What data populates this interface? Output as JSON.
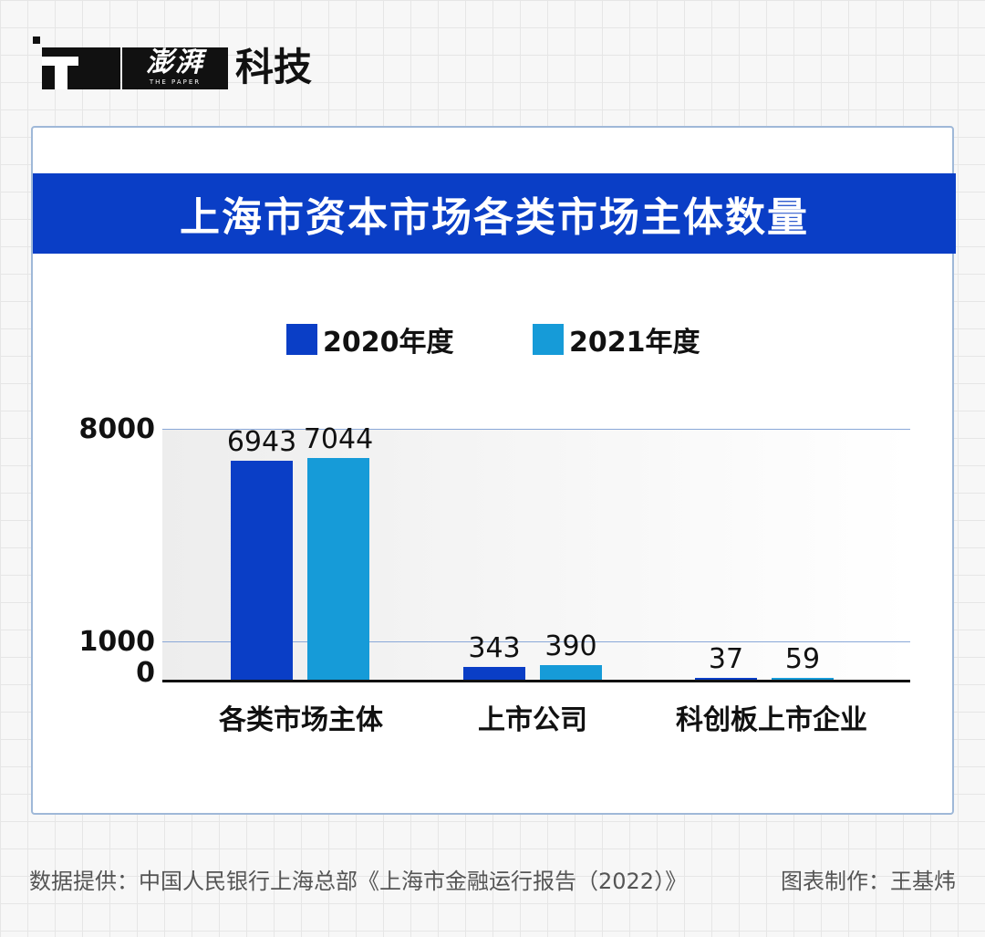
{
  "brand": {
    "name_cn": "澎湃",
    "name_en": "THE PAPER",
    "section": "科技"
  },
  "chart_data": {
    "type": "bar",
    "title": "上海市资本市场各类市场主体数量",
    "categories": [
      "各类市场主体",
      "上市公司",
      "科创板上市企业"
    ],
    "series": [
      {
        "name": "2020年度",
        "color": "#0a3ec6",
        "values": [
          6943,
          343,
          37
        ]
      },
      {
        "name": "2021年度",
        "color": "#169bd8",
        "values": [
          7044,
          390,
          59
        ]
      }
    ],
    "yticks": [
      "8000",
      "1000",
      "0"
    ],
    "ylim": [
      0,
      8000
    ],
    "xlabel": "",
    "ylabel": "",
    "legend": "top",
    "grid": true
  },
  "footer": {
    "source": "数据提供：中国人民银行上海总部《上海市金融运行报告（2022）》",
    "credit": "图表制作：王基炜"
  }
}
